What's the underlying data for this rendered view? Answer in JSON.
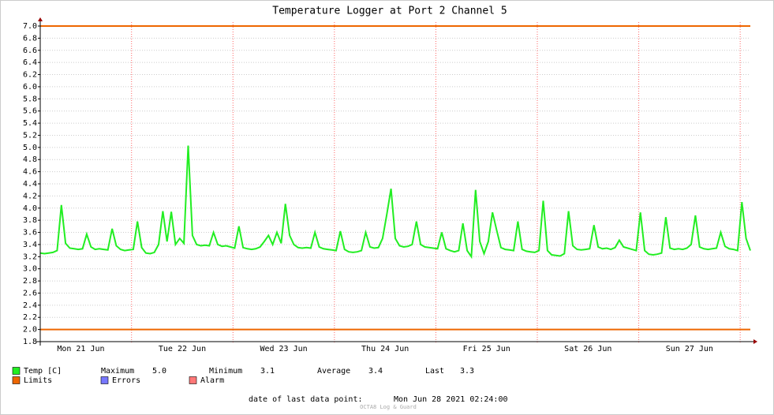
{
  "chart_data": {
    "type": "line",
    "title": "Temperature Logger at Port 2 Channel 5",
    "xlim": [
      0,
      168
    ],
    "xticks": [
      {
        "value": 9.6,
        "label": "Mon 21 Jun"
      },
      {
        "value": 33.6,
        "label": "Tue 22 Jun"
      },
      {
        "value": 57.6,
        "label": "Wed 23 Jun"
      },
      {
        "value": 81.6,
        "label": "Thu 24 Jun"
      },
      {
        "value": 105.6,
        "label": "Fri 25 Jun"
      },
      {
        "value": 129.6,
        "label": "Sat 26 Jun"
      },
      {
        "value": 153.6,
        "label": "Sun 27 Jun"
      }
    ],
    "xmajor": [
      21.6,
      45.6,
      69.6,
      93.6,
      117.6,
      141.6,
      165.6
    ],
    "ylim": [
      1.8,
      7.0
    ],
    "yticks": [
      1.8,
      {
        "value": 2.0,
        "label": "2.0"
      },
      2.2,
      2.4,
      2.6,
      2.8,
      {
        "value": 3.0,
        "label": "3.0"
      },
      3.2,
      3.4,
      3.6,
      3.8,
      {
        "value": 4.0,
        "label": "4.0"
      },
      4.2,
      4.4,
      4.6,
      4.8,
      {
        "value": 5.0,
        "label": "5.0"
      },
      5.2,
      5.4,
      5.6,
      5.8,
      {
        "value": 6.0,
        "label": "6.0"
      },
      6.2,
      6.4,
      6.6,
      6.8,
      {
        "value": 7.0,
        "label": "7.0"
      }
    ],
    "grid": true,
    "series": [
      {
        "name": "Temp [C]",
        "color": "#22ee22",
        "values": [
          3.26,
          3.25,
          3.26,
          3.27,
          3.3,
          4.05,
          3.42,
          3.34,
          3.33,
          3.32,
          3.33,
          3.57,
          3.36,
          3.32,
          3.33,
          3.32,
          3.31,
          3.66,
          3.38,
          3.32,
          3.3,
          3.31,
          3.32,
          3.78,
          3.35,
          3.26,
          3.25,
          3.27,
          3.4,
          3.95,
          3.45,
          3.94,
          3.4,
          3.5,
          3.42,
          5.03,
          3.55,
          3.4,
          3.38,
          3.39,
          3.38,
          3.6,
          3.4,
          3.37,
          3.38,
          3.36,
          3.34,
          3.7,
          3.35,
          3.33,
          3.32,
          3.33,
          3.36,
          3.45,
          3.55,
          3.4,
          3.6,
          3.42,
          4.07,
          3.55,
          3.4,
          3.35,
          3.34,
          3.35,
          3.34,
          3.6,
          3.36,
          3.33,
          3.32,
          3.31,
          3.3,
          3.62,
          3.32,
          3.28,
          3.27,
          3.28,
          3.3,
          3.6,
          3.36,
          3.34,
          3.35,
          3.5,
          3.9,
          4.32,
          3.5,
          3.38,
          3.36,
          3.37,
          3.4,
          3.78,
          3.4,
          3.36,
          3.35,
          3.34,
          3.33,
          3.6,
          3.33,
          3.3,
          3.28,
          3.3,
          3.75,
          3.3,
          3.2,
          4.3,
          3.45,
          3.25,
          3.45,
          3.93,
          3.63,
          3.35,
          3.32,
          3.31,
          3.3,
          3.78,
          3.32,
          3.29,
          3.28,
          3.27,
          3.3,
          4.12,
          3.3,
          3.23,
          3.22,
          3.21,
          3.25,
          3.95,
          3.38,
          3.32,
          3.31,
          3.32,
          3.33,
          3.72,
          3.36,
          3.33,
          3.34,
          3.32,
          3.35,
          3.47,
          3.36,
          3.34,
          3.32,
          3.3,
          3.93,
          3.3,
          3.24,
          3.23,
          3.24,
          3.26,
          3.85,
          3.34,
          3.32,
          3.33,
          3.32,
          3.34,
          3.4,
          3.88,
          3.36,
          3.33,
          3.32,
          3.33,
          3.34,
          3.6,
          3.37,
          3.33,
          3.32,
          3.3,
          4.1,
          3.5,
          3.3
        ]
      },
      {
        "name": "Limits",
        "color": "#ee6600",
        "values": [
          7.0,
          2.0
        ]
      }
    ],
    "legend_extra": [
      {
        "name": "Errors",
        "color": "#7777ff"
      },
      {
        "name": "Alarm",
        "color": "#ff7777"
      }
    ],
    "stats": [
      {
        "name": "Maximum",
        "value": 5.0,
        "label": "5.0"
      },
      {
        "name": "Minimum",
        "value": 3.1,
        "label": "3.1"
      },
      {
        "name": "Average",
        "value": 3.4,
        "label": "3.4"
      },
      {
        "name": "Last",
        "value": 3.3,
        "label": "3.3"
      }
    ],
    "footer_label": "date of last data point:",
    "footer_value": "Mon Jun 28 2021 02:24:00",
    "watermark": "OCTA8 Log & Guard"
  }
}
